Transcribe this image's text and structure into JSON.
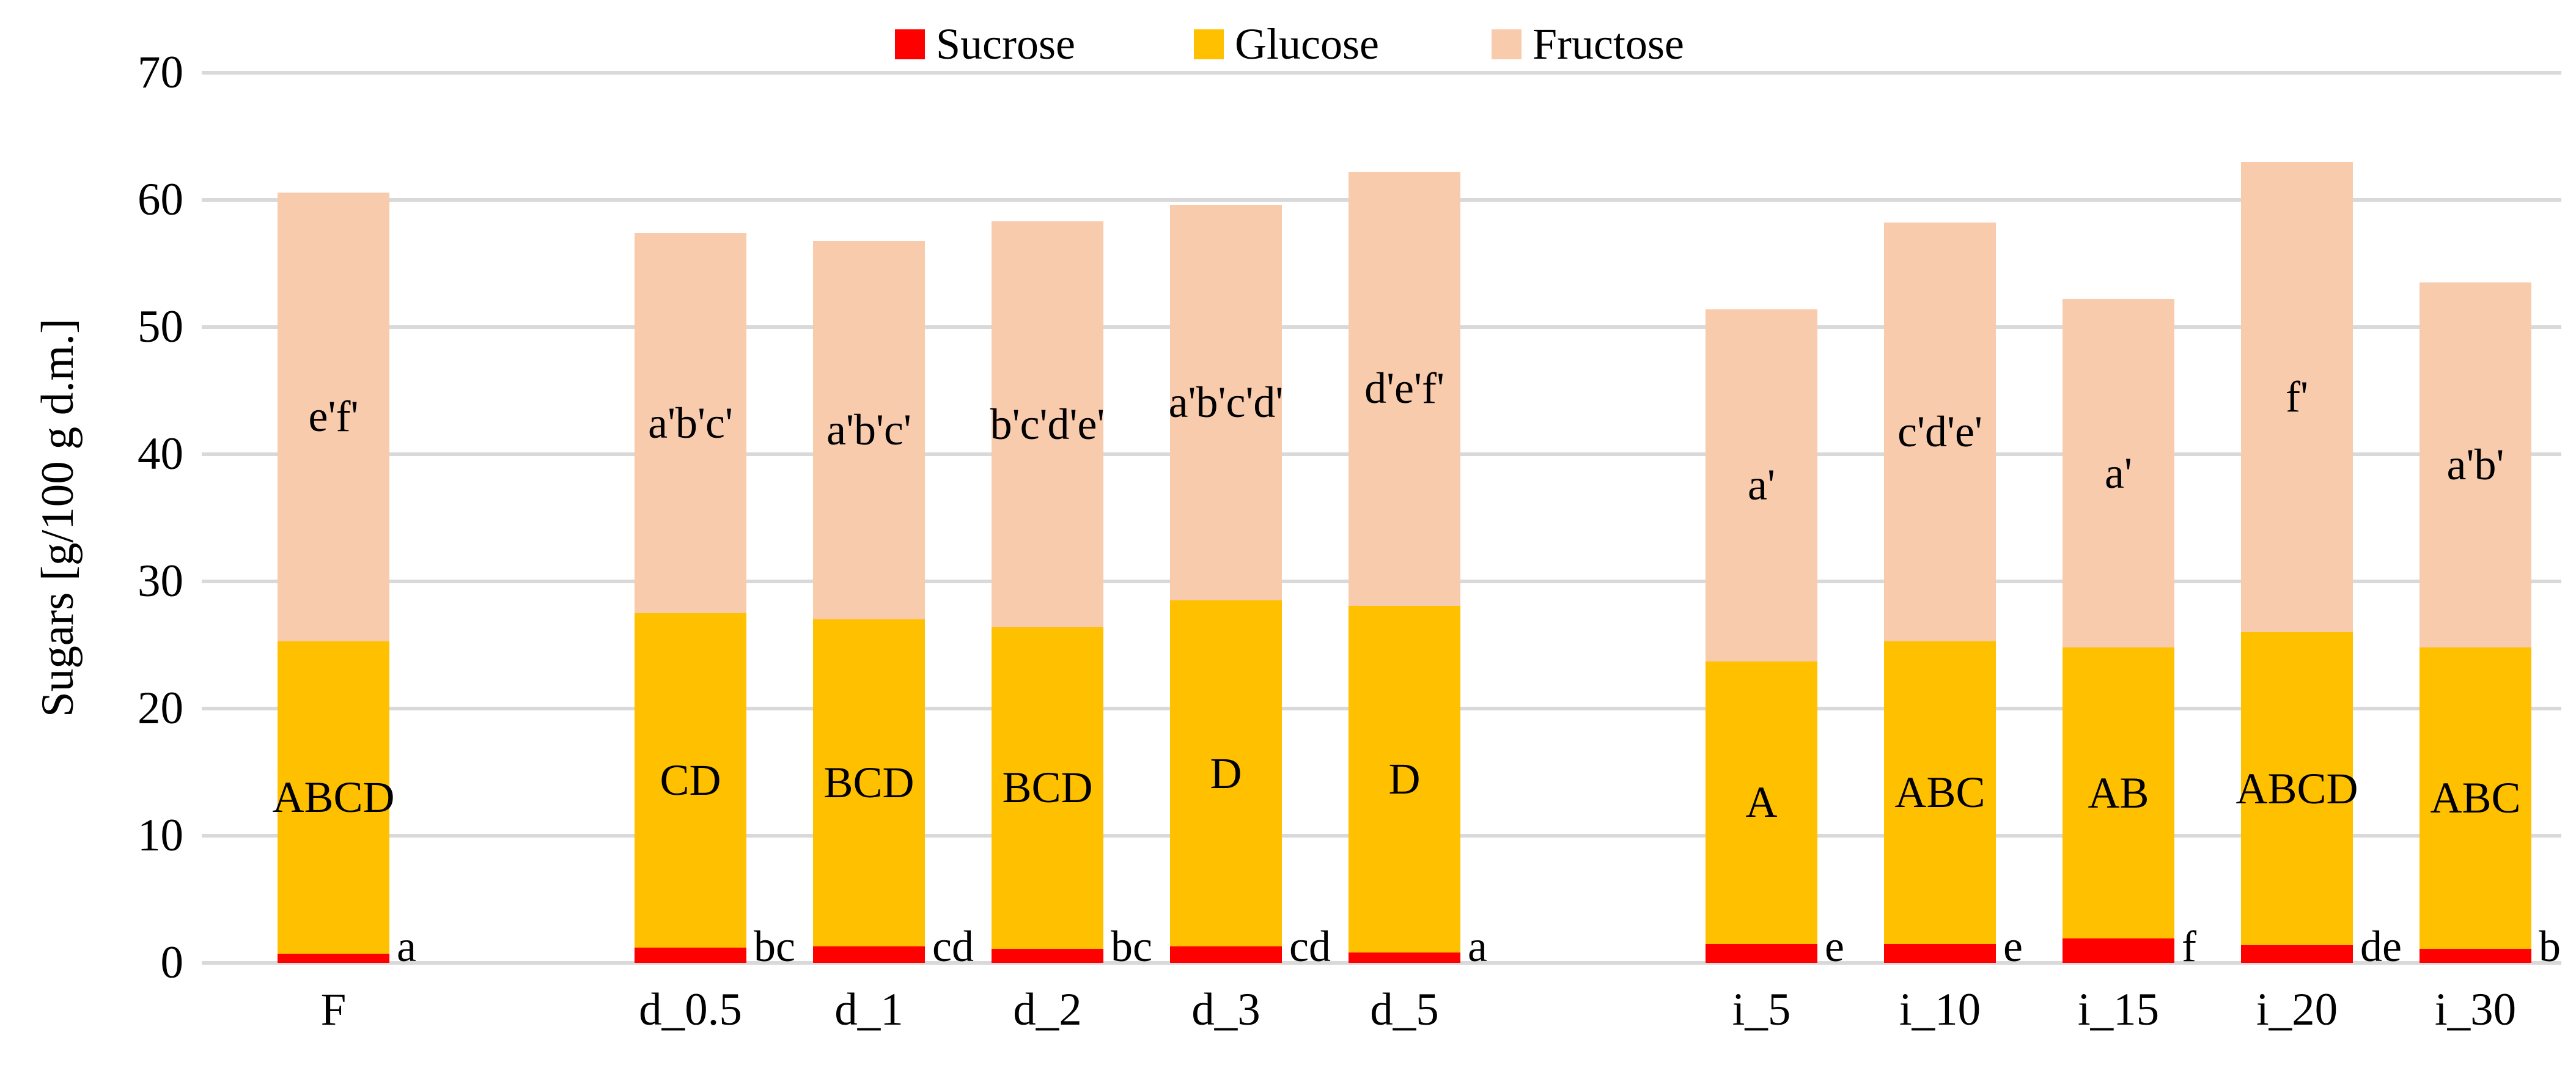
{
  "y_axis": {
    "label": "Sugars [g/100 g d.m.]",
    "ticks": [
      "0",
      "10",
      "20",
      "30",
      "40",
      "50",
      "60",
      "70"
    ],
    "min": 0,
    "max": 70
  },
  "legend": {
    "items": [
      {
        "label": "Sucrose",
        "color": "#ff0000"
      },
      {
        "label": "Glucose",
        "color": "#ffc000"
      },
      {
        "label": "Fructose",
        "color": "#f8cbad"
      }
    ]
  },
  "colors": {
    "sucrose": "#ff0000",
    "glucose": "#ffc000",
    "fructose": "#f8cbad",
    "gridline": "#d9d9d9",
    "text": "#000000"
  },
  "chart_data": {
    "type": "bar",
    "stacked": true,
    "title": "",
    "xlabel": "",
    "ylabel": "Sugars [g/100 g d.m.]",
    "ylim": [
      0,
      70
    ],
    "ytick_step": 10,
    "grid": "horizontal",
    "legend_position": "top-center",
    "categories": [
      "F",
      "d_0.5",
      "d_1",
      "d_2",
      "d_3",
      "d_5",
      "i_5",
      "i_10",
      "i_15",
      "i_20",
      "i_30"
    ],
    "groups": [
      [
        "F"
      ],
      [
        "d_0.5",
        "d_1",
        "d_2",
        "d_3",
        "d_5"
      ],
      [
        "i_5",
        "i_10",
        "i_15",
        "i_20",
        "i_30"
      ]
    ],
    "series": [
      {
        "name": "Sucrose",
        "color": "#ff0000",
        "values": [
          0.7,
          1.2,
          1.3,
          1.1,
          1.3,
          0.8,
          1.5,
          1.5,
          1.9,
          1.4,
          1.1
        ],
        "labels": [
          "a",
          "bc",
          "cd",
          "bc",
          "cd",
          "a",
          "e",
          "e",
          "f",
          "de",
          "b"
        ],
        "label_placement": "right-of-bar-at-baseline"
      },
      {
        "name": "Glucose",
        "color": "#ffc000",
        "values": [
          24.6,
          26.3,
          25.7,
          25.3,
          27.2,
          27.3,
          22.2,
          23.8,
          22.9,
          24.6,
          23.7
        ],
        "labels": [
          "ABCD",
          "CD",
          "BCD",
          "BCD",
          "D",
          "D",
          "A",
          "ABC",
          "AB",
          "ABCD",
          "ABC"
        ],
        "label_placement": "segment-center"
      },
      {
        "name": "Fructose",
        "color": "#f8cbad",
        "values": [
          35.3,
          29.9,
          29.8,
          31.9,
          31.1,
          34.1,
          27.7,
          32.9,
          27.4,
          37.0,
          28.7
        ],
        "labels": [
          "e'f'",
          "a'b'c'",
          "a'b'c'",
          "b'c'd'e'",
          "a'b'c'd'",
          "d'e'f'",
          "a'",
          "c'd'e'",
          "a'",
          "f'",
          "a'b'"
        ],
        "label_placement": "segment-center"
      }
    ],
    "totals": [
      60.6,
      57.4,
      56.8,
      58.3,
      59.6,
      62.2,
      51.4,
      58.2,
      52.2,
      63.0,
      53.5
    ]
  }
}
